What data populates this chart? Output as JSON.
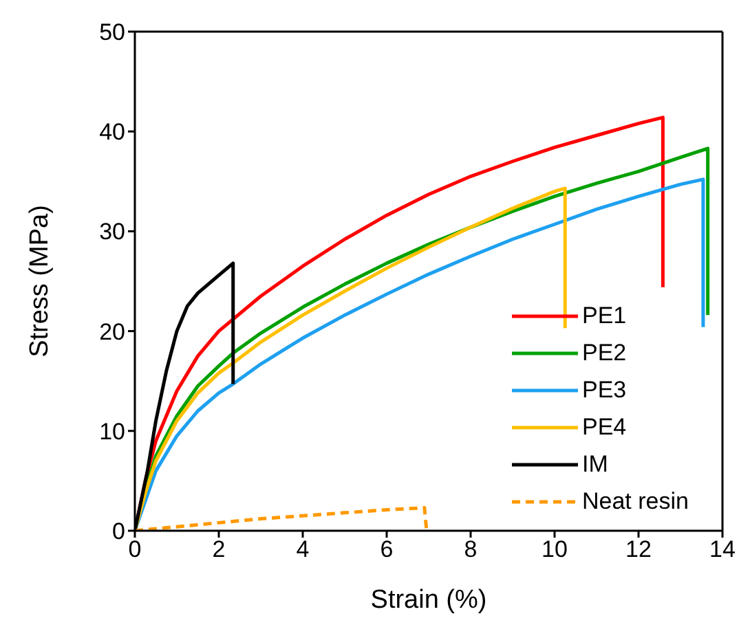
{
  "chart_data": {
    "type": "line",
    "xlabel": "Strain (%)",
    "ylabel": "Stress (MPa)",
    "xlim": [
      0,
      14
    ],
    "xticks": [
      0,
      2,
      4,
      6,
      8,
      10,
      12,
      14
    ],
    "ylim": [
      0,
      50
    ],
    "yticks": [
      0,
      10,
      20,
      30,
      40,
      50
    ],
    "grid": false,
    "legend": "bottom right",
    "marker": "none",
    "series": [
      {
        "name": "PE1",
        "color": "#ff0000",
        "x": [
          0,
          0.25,
          0.5,
          1,
          1.5,
          2,
          3,
          4,
          5,
          6,
          7,
          8,
          9,
          10,
          11,
          12,
          12.58,
          12.58
        ],
        "values": [
          0,
          5,
          9,
          14,
          17.5,
          20,
          23.5,
          26.5,
          29.2,
          31.6,
          33.7,
          35.5,
          37,
          38.4,
          39.6,
          40.8,
          41.4,
          24.4
        ]
      },
      {
        "name": "PE2",
        "color": "#00a000",
        "x": [
          0,
          0.25,
          0.5,
          1,
          1.5,
          2,
          2.34,
          3,
          4,
          5,
          6,
          7,
          8,
          9,
          10,
          11,
          12,
          13,
          13.65,
          13.65
        ],
        "values": [
          0,
          4,
          7.5,
          11.5,
          14.5,
          16.5,
          17.8,
          19.8,
          22.4,
          24.7,
          26.8,
          28.7,
          30.4,
          32,
          33.5,
          34.8,
          36,
          37.4,
          38.3,
          21.6
        ]
      },
      {
        "name": "PE3",
        "color": "#1ea0f0",
        "x": [
          0,
          0.25,
          0.5,
          1,
          1.5,
          2,
          2.34,
          3,
          4,
          5,
          6,
          7,
          8,
          9,
          10,
          11,
          12,
          13,
          13.54,
          13.54
        ],
        "values": [
          0,
          3,
          6,
          9.5,
          12,
          13.8,
          14.7,
          16.7,
          19.3,
          21.6,
          23.7,
          25.7,
          27.5,
          29.2,
          30.7,
          32.2,
          33.5,
          34.7,
          35.2,
          20.4
        ]
      },
      {
        "name": "PE4",
        "color": "#ffc000",
        "x": [
          0,
          0.25,
          0.5,
          1,
          1.5,
          2,
          2.34,
          3,
          4,
          5,
          6,
          7,
          8,
          9,
          10,
          10.25,
          10.25
        ],
        "values": [
          0,
          3.8,
          7,
          11,
          13.8,
          15.8,
          16.8,
          18.9,
          21.6,
          24,
          26.3,
          28.4,
          30.4,
          32.3,
          34,
          34.3,
          20.3
        ]
      },
      {
        "name": "IM",
        "color": "#000000",
        "x": [
          0,
          0.3,
          0.5,
          0.75,
          1,
          1.25,
          1.5,
          2,
          2.34,
          2.34
        ],
        "values": [
          0,
          6,
          11,
          16,
          20,
          22.5,
          23.8,
          25.6,
          26.8,
          14.7
        ]
      },
      {
        "name": "Neat resin",
        "color": "#ff9900",
        "line_style": "dashed",
        "x": [
          0,
          1,
          2,
          3,
          4,
          5,
          6,
          6.9,
          6.95
        ],
        "values": [
          0,
          0.4,
          0.8,
          1.2,
          1.5,
          1.8,
          2.1,
          2.3,
          0
        ]
      }
    ]
  }
}
